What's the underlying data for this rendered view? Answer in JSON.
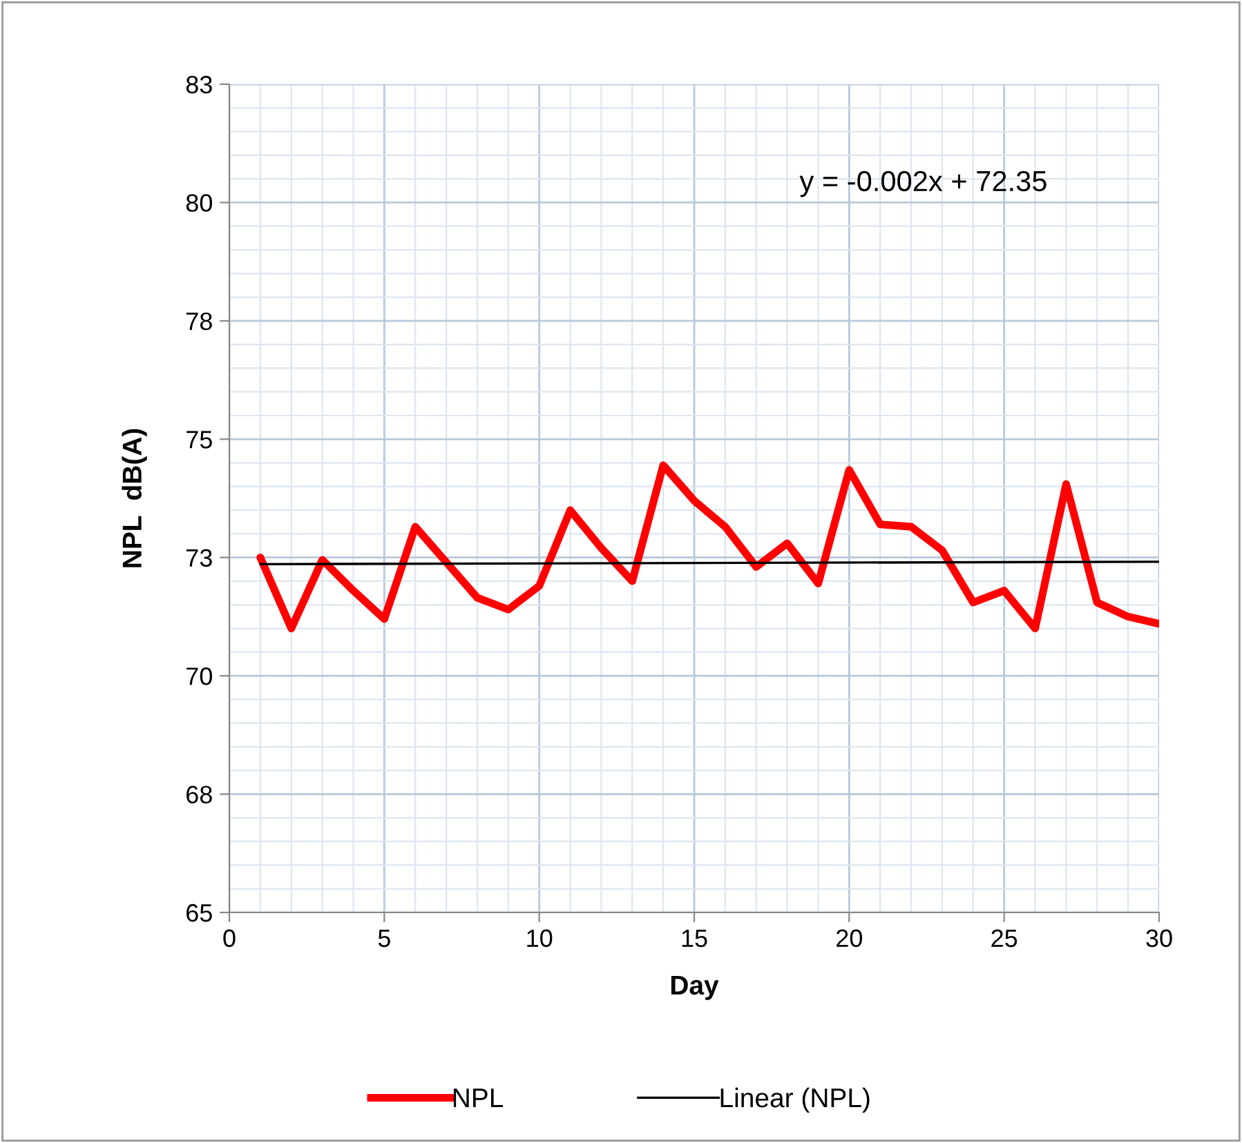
{
  "chart_data": {
    "type": "line",
    "xlabel": "Day",
    "ylabel": "NPL  dB(A)",
    "annotations": [
      "y = -0.002x + 72.35"
    ],
    "xlim": [
      0,
      30
    ],
    "xticks": [
      0,
      5,
      10,
      15,
      20,
      25,
      30
    ],
    "ylim": [
      65,
      82.5
    ],
    "yticks": [
      {
        "value": 65,
        "label": "65"
      },
      {
        "value": 67.5,
        "label": "68"
      },
      {
        "value": 70,
        "label": "70"
      },
      {
        "value": 72.5,
        "label": "73"
      },
      {
        "value": 75,
        "label": "75"
      },
      {
        "value": 77.5,
        "label": "78"
      },
      {
        "value": 80,
        "label": "80"
      },
      {
        "value": 82.5,
        "label": "83"
      }
    ],
    "grid": true,
    "legend": "bottom",
    "series": [
      {
        "name": "NPL",
        "color": "#ff0000",
        "x": [
          1,
          2,
          3,
          4,
          5,
          6,
          7,
          8,
          9,
          10,
          11,
          12,
          13,
          14,
          15,
          16,
          17,
          18,
          19,
          20,
          21,
          22,
          23,
          24,
          25,
          26,
          27,
          28,
          29,
          30
        ],
        "values": [
          72.5,
          71.0,
          72.45,
          71.8,
          71.2,
          73.15,
          72.4,
          71.65,
          71.4,
          71.9,
          73.5,
          72.7,
          72.0,
          74.45,
          73.7,
          73.15,
          72.3,
          72.8,
          71.95,
          74.35,
          73.2,
          73.15,
          72.65,
          71.55,
          71.8,
          71.0,
          74.05,
          71.55,
          71.25,
          71.1
        ]
      },
      {
        "name": "Linear (NPL)",
        "color": "#000000",
        "x": [
          1,
          30
        ],
        "values": [
          72.36,
          72.41
        ]
      }
    ]
  }
}
